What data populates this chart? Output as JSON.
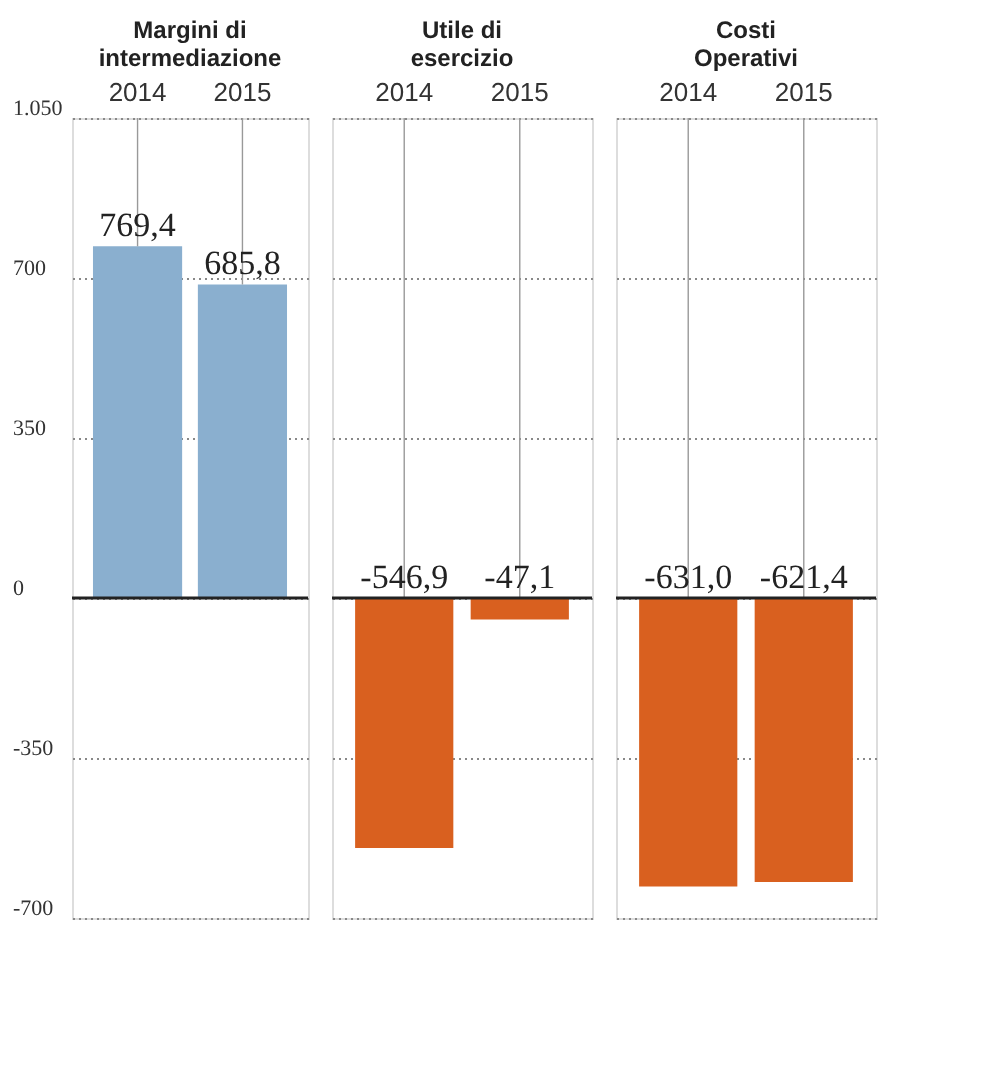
{
  "chart_data": [
    {
      "type": "bar",
      "title": "Margini di\nintermediazione",
      "categories": [
        "2014",
        "2015"
      ],
      "values": [
        769.4,
        685.8
      ],
      "colors": [
        "#8aafcf",
        "#8aafcf"
      ],
      "value_labels": [
        "769,4",
        "685,8"
      ],
      "ylim": [
        -700,
        1050
      ],
      "yticks": [
        {
          "value": -700,
          "label": "-700"
        },
        {
          "value": -350,
          "label": "-350"
        },
        0,
        350,
        700,
        {
          "value": 1050,
          "label": "1.050"
        }
      ],
      "grid": "y",
      "ref_lines": [
        {
          "axis": "y",
          "value": 0
        }
      ]
    },
    {
      "type": "bar",
      "title": "Utile di\nesercizio",
      "categories": [
        "2014",
        "2015"
      ],
      "values": [
        -546.9,
        -47.1
      ],
      "colors": [
        "#d9601f",
        "#d9601f"
      ],
      "value_labels": [
        "-546,9",
        "-47,1"
      ],
      "ylim": [
        -700,
        1050
      ],
      "yticks": [
        -700,
        -350,
        0,
        350,
        700,
        1050
      ],
      "grid": "y",
      "tick_labels": "x",
      "ref_lines": [
        {
          "axis": "y",
          "value": 0
        }
      ]
    },
    {
      "type": "bar",
      "title": "Costi\nOperativi",
      "categories": [
        "2014",
        "2015"
      ],
      "values": [
        -631.0,
        -621.4
      ],
      "colors": [
        "#d9601f",
        "#d9601f"
      ],
      "value_labels": [
        "-631,0",
        "-621,4"
      ],
      "ylim": [
        -700,
        1050
      ],
      "yticks": [
        -700,
        -350,
        0,
        350,
        700,
        1050
      ],
      "grid": "y",
      "tick_labels": "x",
      "ref_lines": [
        {
          "axis": "y",
          "value": 0
        }
      ]
    }
  ]
}
